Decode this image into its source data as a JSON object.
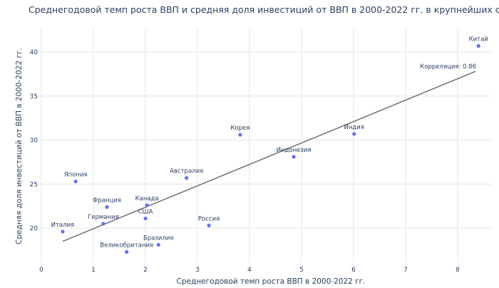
{
  "chart_data": {
    "type": "scatter",
    "title": "Среднегодовой темп роста ВВП и средняя доля инвестиций от ВВП в 2000-2022 гг. в крупнейших странах",
    "xlabel": "Среднегодовой темп роста ВВП в 2000-2022 гг.",
    "ylabel": "Средняя доля инвестиций от ВВП в 2000-2022 гг.",
    "xlim": [
      -0.1,
      8.6
    ],
    "ylim": [
      16.5,
      42
    ],
    "x_ticks": [
      0,
      1,
      2,
      3,
      4,
      5,
      6,
      7,
      8
    ],
    "y_ticks": [
      20,
      25,
      30,
      35,
      40
    ],
    "grid": true,
    "marker_color": "#636efa",
    "trendline_color": "#707070",
    "annotation": "Корреляция: 0.86",
    "points": [
      {
        "label": "Италия",
        "x": 0.41,
        "y": 19.6
      },
      {
        "label": "Япония",
        "x": 0.66,
        "y": 25.3
      },
      {
        "label": "Германия",
        "x": 1.19,
        "y": 20.5
      },
      {
        "label": "Франция",
        "x": 1.26,
        "y": 22.4
      },
      {
        "label": "Великобритания",
        "x": 1.64,
        "y": 17.3
      },
      {
        "label": "США",
        "x": 2.0,
        "y": 21.1
      },
      {
        "label": "Канада",
        "x": 2.03,
        "y": 22.6
      },
      {
        "label": "Бразилия",
        "x": 2.25,
        "y": 18.1
      },
      {
        "label": "Австралия",
        "x": 2.79,
        "y": 25.7
      },
      {
        "label": "Россия",
        "x": 3.22,
        "y": 20.3
      },
      {
        "label": "Корея",
        "x": 3.82,
        "y": 30.6
      },
      {
        "label": "Индонезия",
        "x": 4.85,
        "y": 28.1
      },
      {
        "label": "Индия",
        "x": 6.01,
        "y": 30.7
      },
      {
        "label": "Китай",
        "x": 8.4,
        "y": 40.7
      }
    ],
    "trendline": {
      "x": [
        0.41,
        8.34
      ],
      "y": [
        18.5,
        37.8
      ]
    }
  }
}
